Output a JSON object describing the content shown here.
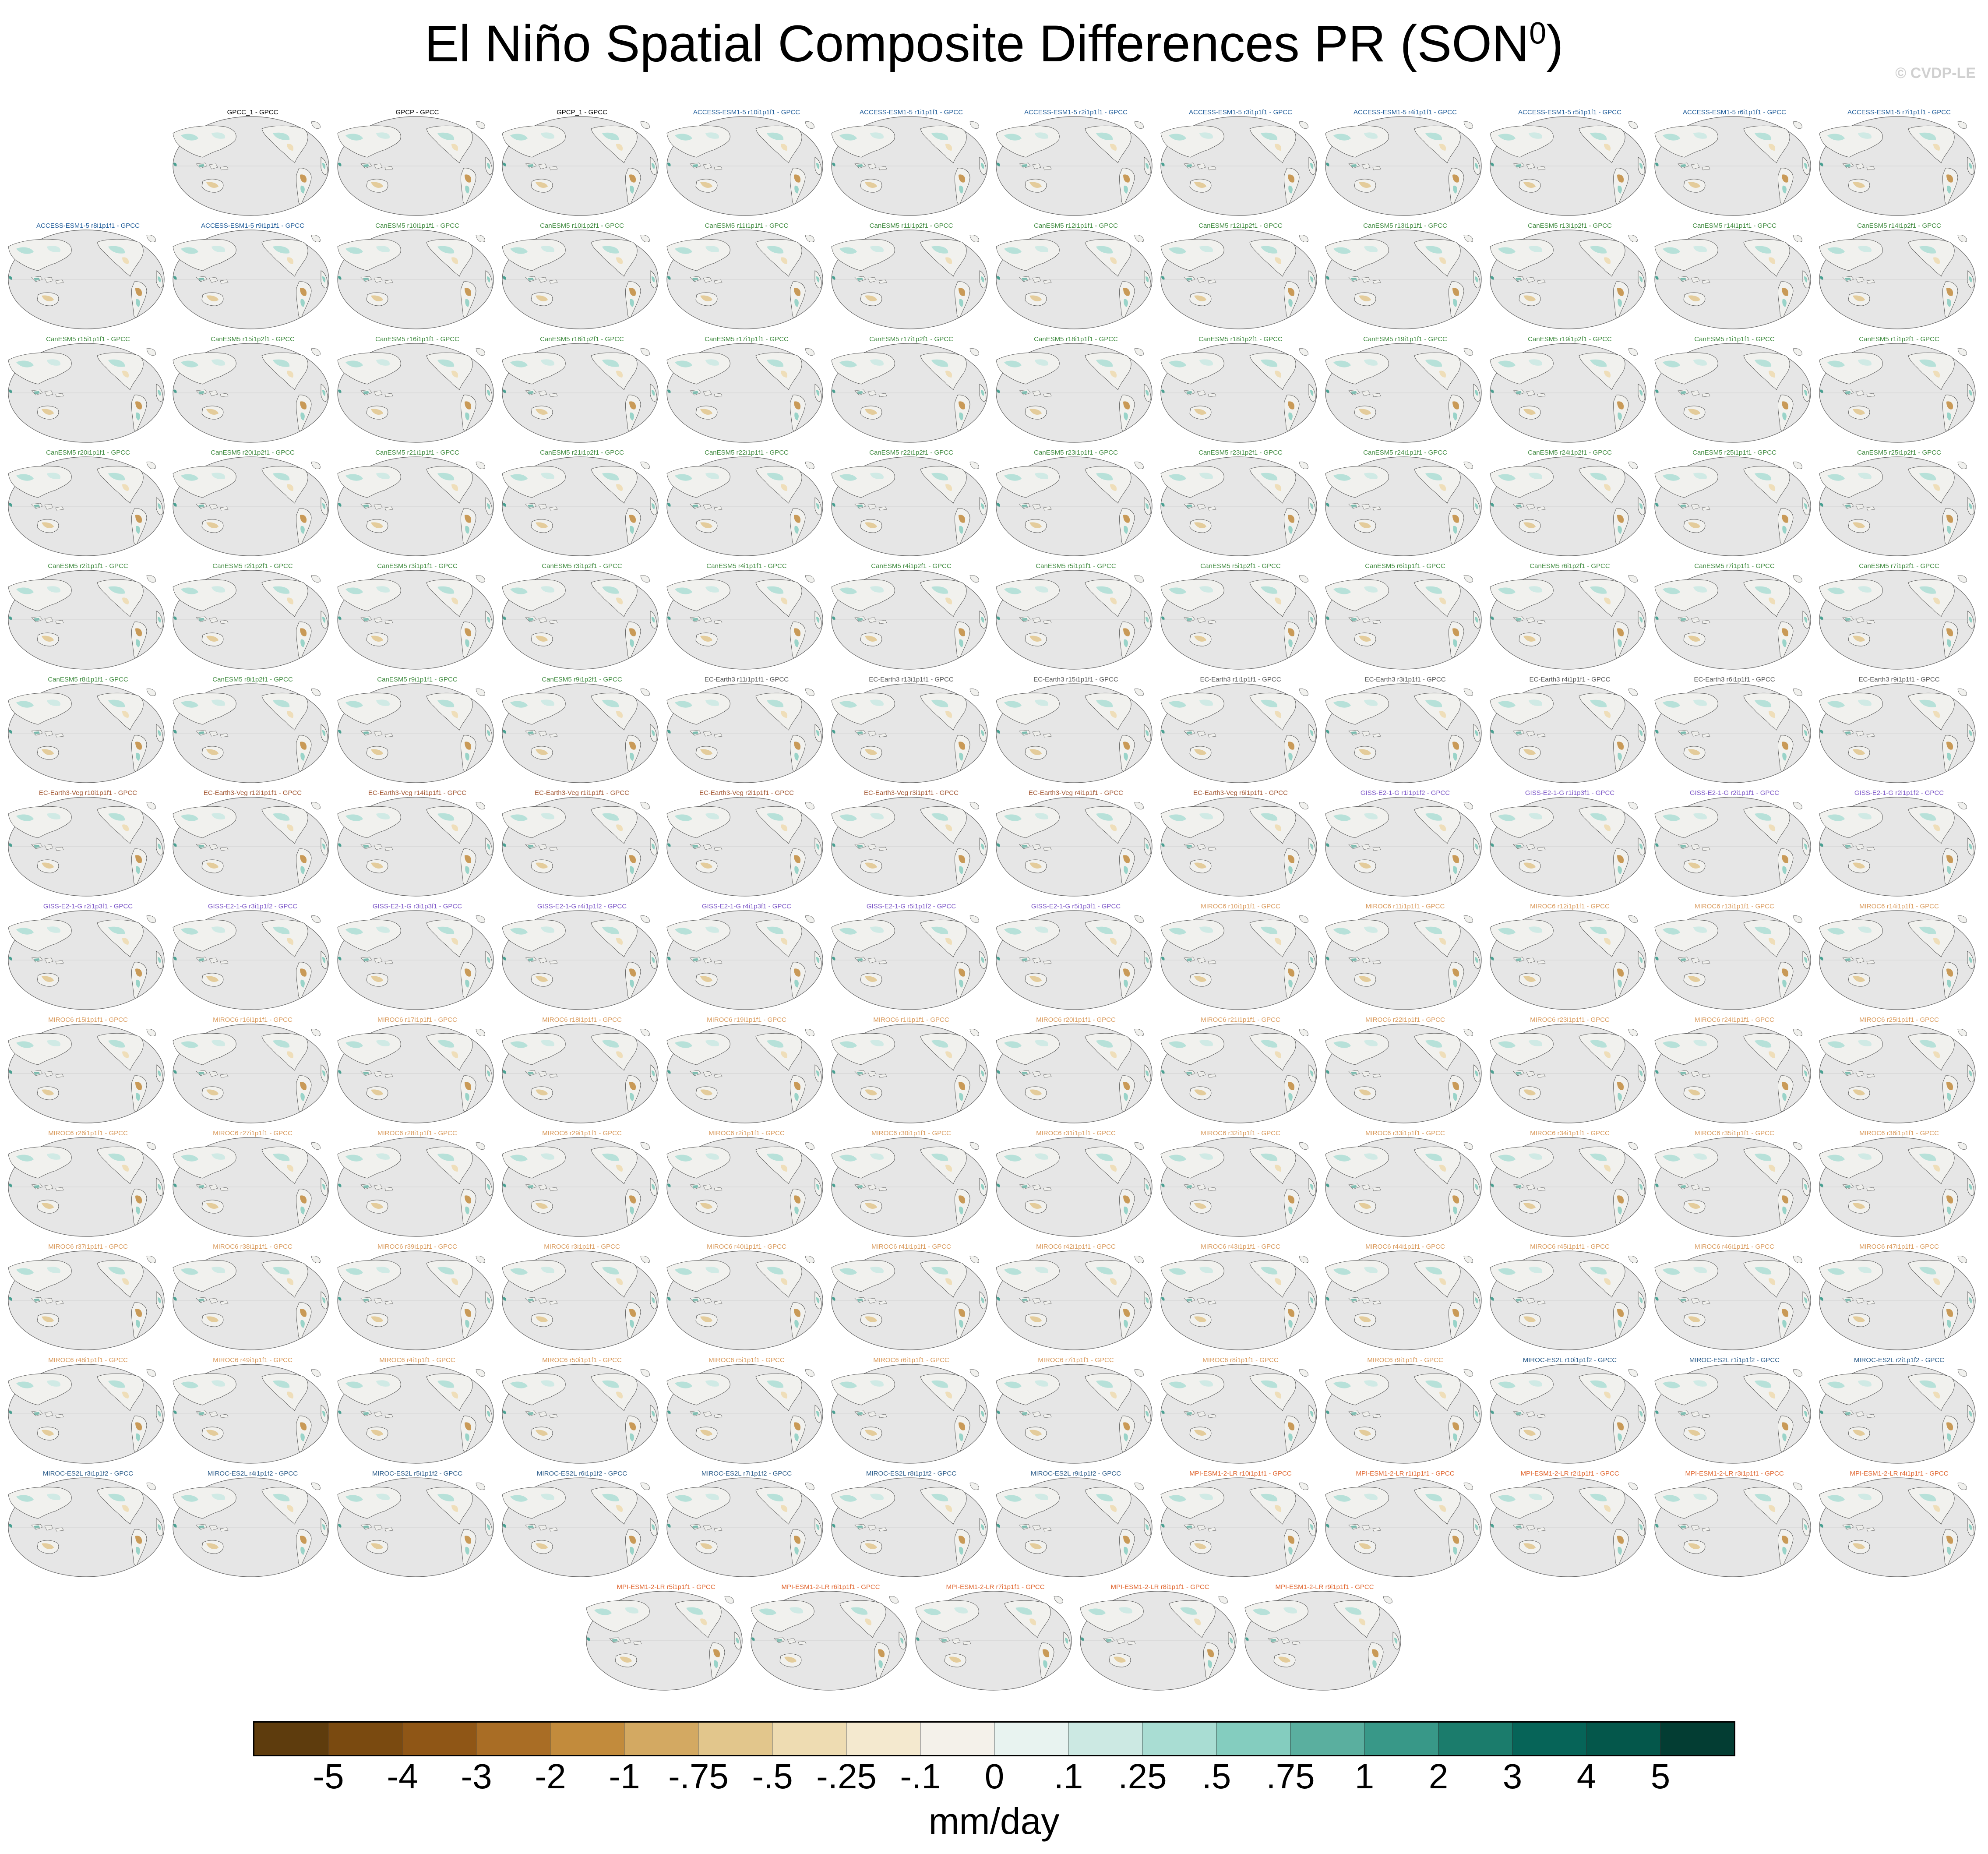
{
  "title": "El Niño Spatial Composite Differences PR (SON",
  "title_sup": "0",
  "title_suffix": ")",
  "watermark": "© CVDP-LE",
  "icons": [
    "world-map-icon"
  ],
  "panels": [
    {
      "label": "GPCC_1 - GPCC",
      "group": "obs"
    },
    {
      "label": "GPCP - GPCC",
      "group": "obs"
    },
    {
      "label": "GPCP_1 - GPCC",
      "group": "obs"
    },
    {
      "label": "ACCESS-ESM1-5 r10i1p1f1 - GPCC",
      "group": "ACCESS"
    },
    {
      "label": "ACCESS-ESM1-5 r1i1p1f1 - GPCC",
      "group": "ACCESS"
    },
    {
      "label": "ACCESS-ESM1-5 r2i1p1f1 - GPCC",
      "group": "ACCESS"
    },
    {
      "label": "ACCESS-ESM1-5 r3i1p1f1 - GPCC",
      "group": "ACCESS"
    },
    {
      "label": "ACCESS-ESM1-5 r4i1p1f1 - GPCC",
      "group": "ACCESS"
    },
    {
      "label": "ACCESS-ESM1-5 r5i1p1f1 - GPCC",
      "group": "ACCESS"
    },
    {
      "label": "ACCESS-ESM1-5 r6i1p1f1 - GPCC",
      "group": "ACCESS"
    },
    {
      "label": "ACCESS-ESM1-5 r7i1p1f1 - GPCC",
      "group": "ACCESS"
    },
    {
      "label": "ACCESS-ESM1-5 r8i1p1f1 - GPCC",
      "group": "ACCESS"
    },
    {
      "label": "ACCESS-ESM1-5 r9i1p1f1 - GPCC",
      "group": "ACCESS"
    },
    {
      "label": "CanESM5 r10i1p1f1 - GPCC",
      "group": "CanESM5"
    },
    {
      "label": "CanESM5 r10i1p2f1 - GPCC",
      "group": "CanESM5"
    },
    {
      "label": "CanESM5 r11i1p1f1 - GPCC",
      "group": "CanESM5"
    },
    {
      "label": "CanESM5 r11i1p2f1 - GPCC",
      "group": "CanESM5"
    },
    {
      "label": "CanESM5 r12i1p1f1 - GPCC",
      "group": "CanESM5"
    },
    {
      "label": "CanESM5 r12i1p2f1 - GPCC",
      "group": "CanESM5"
    },
    {
      "label": "CanESM5 r13i1p1f1 - GPCC",
      "group": "CanESM5"
    },
    {
      "label": "CanESM5 r13i1p2f1 - GPCC",
      "group": "CanESM5"
    },
    {
      "label": "CanESM5 r14i1p1f1 - GPCC",
      "group": "CanESM5"
    },
    {
      "label": "CanESM5 r14i1p2f1 - GPCC",
      "group": "CanESM5"
    },
    {
      "label": "CanESM5 r15i1p1f1 - GPCC",
      "group": "CanESM5"
    },
    {
      "label": "CanESM5 r15i1p2f1 - GPCC",
      "group": "CanESM5"
    },
    {
      "label": "CanESM5 r16i1p1f1 - GPCC",
      "group": "CanESM5"
    },
    {
      "label": "CanESM5 r16i1p2f1 - GPCC",
      "group": "CanESM5"
    },
    {
      "label": "CanESM5 r17i1p1f1 - GPCC",
      "group": "CanESM5"
    },
    {
      "label": "CanESM5 r17i1p2f1 - GPCC",
      "group": "CanESM5"
    },
    {
      "label": "CanESM5 r18i1p1f1 - GPCC",
      "group": "CanESM5"
    },
    {
      "label": "CanESM5 r18i1p2f1 - GPCC",
      "group": "CanESM5"
    },
    {
      "label": "CanESM5 r19i1p1f1 - GPCC",
      "group": "CanESM5"
    },
    {
      "label": "CanESM5 r19i1p2f1 - GPCC",
      "group": "CanESM5"
    },
    {
      "label": "CanESM5 r1i1p1f1 - GPCC",
      "group": "CanESM5"
    },
    {
      "label": "CanESM5 r1i1p2f1 - GPCC",
      "group": "CanESM5"
    },
    {
      "label": "CanESM5 r20i1p1f1 - GPCC",
      "group": "CanESM5"
    },
    {
      "label": "CanESM5 r20i1p2f1 - GPCC",
      "group": "CanESM5"
    },
    {
      "label": "CanESM5 r21i1p1f1 - GPCC",
      "group": "CanESM5"
    },
    {
      "label": "CanESM5 r21i1p2f1 - GPCC",
      "group": "CanESM5"
    },
    {
      "label": "CanESM5 r22i1p1f1 - GPCC",
      "group": "CanESM5"
    },
    {
      "label": "CanESM5 r22i1p2f1 - GPCC",
      "group": "CanESM5"
    },
    {
      "label": "CanESM5 r23i1p1f1 - GPCC",
      "group": "CanESM5"
    },
    {
      "label": "CanESM5 r23i1p2f1 - GPCC",
      "group": "CanESM5"
    },
    {
      "label": "CanESM5 r24i1p1f1 - GPCC",
      "group": "CanESM5"
    },
    {
      "label": "CanESM5 r24i1p2f1 - GPCC",
      "group": "CanESM5"
    },
    {
      "label": "CanESM5 r25i1p1f1 - GPCC",
      "group": "CanESM5"
    },
    {
      "label": "CanESM5 r25i1p2f1 - GPCC",
      "group": "CanESM5"
    },
    {
      "label": "CanESM5 r2i1p1f1 - GPCC",
      "group": "CanESM5"
    },
    {
      "label": "CanESM5 r2i1p2f1 - GPCC",
      "group": "CanESM5"
    },
    {
      "label": "CanESM5 r3i1p1f1 - GPCC",
      "group": "CanESM5"
    },
    {
      "label": "CanESM5 r3i1p2f1 - GPCC",
      "group": "CanESM5"
    },
    {
      "label": "CanESM5 r4i1p1f1 - GPCC",
      "group": "CanESM5"
    },
    {
      "label": "CanESM5 r4i1p2f1 - GPCC",
      "group": "CanESM5"
    },
    {
      "label": "CanESM5 r5i1p1f1 - GPCC",
      "group": "CanESM5"
    },
    {
      "label": "CanESM5 r5i1p2f1 - GPCC",
      "group": "CanESM5"
    },
    {
      "label": "CanESM5 r6i1p1f1 - GPCC",
      "group": "CanESM5"
    },
    {
      "label": "CanESM5 r6i1p2f1 - GPCC",
      "group": "CanESM5"
    },
    {
      "label": "CanESM5 r7i1p1f1 - GPCC",
      "group": "CanESM5"
    },
    {
      "label": "CanESM5 r7i1p2f1 - GPCC",
      "group": "CanESM5"
    },
    {
      "label": "CanESM5 r8i1p1f1 - GPCC",
      "group": "CanESM5"
    },
    {
      "label": "CanESM5 r8i1p2f1 - GPCC",
      "group": "CanESM5"
    },
    {
      "label": "CanESM5 r9i1p1f1 - GPCC",
      "group": "CanESM5"
    },
    {
      "label": "CanESM5 r9i1p2f1 - GPCC",
      "group": "CanESM5"
    },
    {
      "label": "EC-Earth3 r11i1p1f1 - GPCC",
      "group": "EC-Earth3"
    },
    {
      "label": "EC-Earth3 r13i1p1f1 - GPCC",
      "group": "EC-Earth3"
    },
    {
      "label": "EC-Earth3 r15i1p1f1 - GPCC",
      "group": "EC-Earth3"
    },
    {
      "label": "EC-Earth3 r1i1p1f1 - GPCC",
      "group": "EC-Earth3"
    },
    {
      "label": "EC-Earth3 r3i1p1f1 - GPCC",
      "group": "EC-Earth3"
    },
    {
      "label": "EC-Earth3 r4i1p1f1 - GPCC",
      "group": "EC-Earth3"
    },
    {
      "label": "EC-Earth3 r6i1p1f1 - GPCC",
      "group": "EC-Earth3"
    },
    {
      "label": "EC-Earth3 r9i1p1f1 - GPCC",
      "group": "EC-Earth3"
    },
    {
      "label": "EC-Earth3-Veg r10i1p1f1 - GPCC",
      "group": "EC-Earth3-Veg"
    },
    {
      "label": "EC-Earth3-Veg r12i1p1f1 - GPCC",
      "group": "EC-Earth3-Veg"
    },
    {
      "label": "EC-Earth3-Veg r14i1p1f1 - GPCC",
      "group": "EC-Earth3-Veg"
    },
    {
      "label": "EC-Earth3-Veg r1i1p1f1 - GPCC",
      "group": "EC-Earth3-Veg"
    },
    {
      "label": "EC-Earth3-Veg r2i1p1f1 - GPCC",
      "group": "EC-Earth3-Veg"
    },
    {
      "label": "EC-Earth3-Veg r3i1p1f1 - GPCC",
      "group": "EC-Earth3-Veg"
    },
    {
      "label": "EC-Earth3-Veg r4i1p1f1 - GPCC",
      "group": "EC-Earth3-Veg"
    },
    {
      "label": "EC-Earth3-Veg r6i1p1f1 - GPCC",
      "group": "EC-Earth3-Veg"
    },
    {
      "label": "GISS-E2-1-G r1i1p1f2 - GPCC",
      "group": "GISS"
    },
    {
      "label": "GISS-E2-1-G r1i1p3f1 - GPCC",
      "group": "GISS"
    },
    {
      "label": "GISS-E2-1-G r2i1p1f1 - GPCC",
      "group": "GISS"
    },
    {
      "label": "GISS-E2-1-G r2i1p1f2 - GPCC",
      "group": "GISS"
    },
    {
      "label": "GISS-E2-1-G r2i1p3f1 - GPCC",
      "group": "GISS"
    },
    {
      "label": "GISS-E2-1-G r3i1p1f2 - GPCC",
      "group": "GISS"
    },
    {
      "label": "GISS-E2-1-G r3i1p3f1 - GPCC",
      "group": "GISS"
    },
    {
      "label": "GISS-E2-1-G r4i1p1f2 - GPCC",
      "group": "GISS"
    },
    {
      "label": "GISS-E2-1-G r4i1p3f1 - GPCC",
      "group": "GISS"
    },
    {
      "label": "GISS-E2-1-G r5i1p1f2 - GPCC",
      "group": "GISS"
    },
    {
      "label": "GISS-E2-1-G r5i1p3f1 - GPCC",
      "group": "GISS"
    },
    {
      "label": "MIROC6 r10i1p1f1 - GPCC",
      "group": "MIROC6"
    },
    {
      "label": "MIROC6 r11i1p1f1 - GPCC",
      "group": "MIROC6"
    },
    {
      "label": "MIROC6 r12i1p1f1 - GPCC",
      "group": "MIROC6"
    },
    {
      "label": "MIROC6 r13i1p1f1 - GPCC",
      "group": "MIROC6"
    },
    {
      "label": "MIROC6 r14i1p1f1 - GPCC",
      "group": "MIROC6"
    },
    {
      "label": "MIROC6 r15i1p1f1 - GPCC",
      "group": "MIROC6"
    },
    {
      "label": "MIROC6 r16i1p1f1 - GPCC",
      "group": "MIROC6"
    },
    {
      "label": "MIROC6 r17i1p1f1 - GPCC",
      "group": "MIROC6"
    },
    {
      "label": "MIROC6 r18i1p1f1 - GPCC",
      "group": "MIROC6"
    },
    {
      "label": "MIROC6 r19i1p1f1 - GPCC",
      "group": "MIROC6"
    },
    {
      "label": "MIROC6 r1i1p1f1 - GPCC",
      "group": "MIROC6"
    },
    {
      "label": "MIROC6 r20i1p1f1 - GPCC",
      "group": "MIROC6"
    },
    {
      "label": "MIROC6 r21i1p1f1 - GPCC",
      "group": "MIROC6"
    },
    {
      "label": "MIROC6 r22i1p1f1 - GPCC",
      "group": "MIROC6"
    },
    {
      "label": "MIROC6 r23i1p1f1 - GPCC",
      "group": "MIROC6"
    },
    {
      "label": "MIROC6 r24i1p1f1 - GPCC",
      "group": "MIROC6"
    },
    {
      "label": "MIROC6 r25i1p1f1 - GPCC",
      "group": "MIROC6"
    },
    {
      "label": "MIROC6 r26i1p1f1 - GPCC",
      "group": "MIROC6"
    },
    {
      "label": "MIROC6 r27i1p1f1 - GPCC",
      "group": "MIROC6"
    },
    {
      "label": "MIROC6 r28i1p1f1 - GPCC",
      "group": "MIROC6"
    },
    {
      "label": "MIROC6 r29i1p1f1 - GPCC",
      "group": "MIROC6"
    },
    {
      "label": "MIROC6 r2i1p1f1 - GPCC",
      "group": "MIROC6"
    },
    {
      "label": "MIROC6 r30i1p1f1 - GPCC",
      "group": "MIROC6"
    },
    {
      "label": "MIROC6 r31i1p1f1 - GPCC",
      "group": "MIROC6"
    },
    {
      "label": "MIROC6 r32i1p1f1 - GPCC",
      "group": "MIROC6"
    },
    {
      "label": "MIROC6 r33i1p1f1 - GPCC",
      "group": "MIROC6"
    },
    {
      "label": "MIROC6 r34i1p1f1 - GPCC",
      "group": "MIROC6"
    },
    {
      "label": "MIROC6 r35i1p1f1 - GPCC",
      "group": "MIROC6"
    },
    {
      "label": "MIROC6 r36i1p1f1 - GPCC",
      "group": "MIROC6"
    },
    {
      "label": "MIROC6 r37i1p1f1 - GPCC",
      "group": "MIROC6"
    },
    {
      "label": "MIROC6 r38i1p1f1 - GPCC",
      "group": "MIROC6"
    },
    {
      "label": "MIROC6 r39i1p1f1 - GPCC",
      "group": "MIROC6"
    },
    {
      "label": "MIROC6 r3i1p1f1 - GPCC",
      "group": "MIROC6"
    },
    {
      "label": "MIROC6 r40i1p1f1 - GPCC",
      "group": "MIROC6"
    },
    {
      "label": "MIROC6 r41i1p1f1 - GPCC",
      "group": "MIROC6"
    },
    {
      "label": "MIROC6 r42i1p1f1 - GPCC",
      "group": "MIROC6"
    },
    {
      "label": "MIROC6 r43i1p1f1 - GPCC",
      "group": "MIROC6"
    },
    {
      "label": "MIROC6 r44i1p1f1 - GPCC",
      "group": "MIROC6"
    },
    {
      "label": "MIROC6 r45i1p1f1 - GPCC",
      "group": "MIROC6"
    },
    {
      "label": "MIROC6 r46i1p1f1 - GPCC",
      "group": "MIROC6"
    },
    {
      "label": "MIROC6 r47i1p1f1 - GPCC",
      "group": "MIROC6"
    },
    {
      "label": "MIROC6 r48i1p1f1 - GPCC",
      "group": "MIROC6"
    },
    {
      "label": "MIROC6 r49i1p1f1 - GPCC",
      "group": "MIROC6"
    },
    {
      "label": "MIROC6 r4i1p1f1 - GPCC",
      "group": "MIROC6"
    },
    {
      "label": "MIROC6 r50i1p1f1 - GPCC",
      "group": "MIROC6"
    },
    {
      "label": "MIROC6 r5i1p1f1 - GPCC",
      "group": "MIROC6"
    },
    {
      "label": "MIROC6 r6i1p1f1 - GPCC",
      "group": "MIROC6"
    },
    {
      "label": "MIROC6 r7i1p1f1 - GPCC",
      "group": "MIROC6"
    },
    {
      "label": "MIROC6 r8i1p1f1 - GPCC",
      "group": "MIROC6"
    },
    {
      "label": "MIROC6 r9i1p1f1 - GPCC",
      "group": "MIROC6"
    },
    {
      "label": "MIROC-ES2L r10i1p1f2 - GPCC",
      "group": "MIROC-ES2L"
    },
    {
      "label": "MIROC-ES2L r1i1p1f2 - GPCC",
      "group": "MIROC-ES2L"
    },
    {
      "label": "MIROC-ES2L r2i1p1f2 - GPCC",
      "group": "MIROC-ES2L"
    },
    {
      "label": "MIROC-ES2L r3i1p1f2 - GPCC",
      "group": "MIROC-ES2L"
    },
    {
      "label": "MIROC-ES2L r4i1p1f2 - GPCC",
      "group": "MIROC-ES2L"
    },
    {
      "label": "MIROC-ES2L r5i1p1f2 - GPCC",
      "group": "MIROC-ES2L"
    },
    {
      "label": "MIROC-ES2L r6i1p1f2 - GPCC",
      "group": "MIROC-ES2L"
    },
    {
      "label": "MIROC-ES2L r7i1p1f2 - GPCC",
      "group": "MIROC-ES2L"
    },
    {
      "label": "MIROC-ES2L r8i1p1f2 - GPCC",
      "group": "MIROC-ES2L"
    },
    {
      "label": "MIROC-ES2L r9i1p1f2 - GPCC",
      "group": "MIROC-ES2L"
    },
    {
      "label": "MPI-ESM1-2-LR r10i1p1f1 - GPCC",
      "group": "MPI"
    },
    {
      "label": "MPI-ESM1-2-LR r1i1p1f1 - GPCC",
      "group": "MPI"
    },
    {
      "label": "MPI-ESM1-2-LR r2i1p1f1 - GPCC",
      "group": "MPI"
    },
    {
      "label": "MPI-ESM1-2-LR r3i1p1f1 - GPCC",
      "group": "MPI"
    },
    {
      "label": "MPI-ESM1-2-LR r4i1p1f1 - GPCC",
      "group": "MPI"
    },
    {
      "label": "MPI-ESM1-2-LR r5i1p1f1 - GPCC",
      "group": "MPI"
    },
    {
      "label": "MPI-ESM1-2-LR r6i1p1f1 - GPCC",
      "group": "MPI"
    },
    {
      "label": "MPI-ESM1-2-LR r7i1p1f1 - GPCC",
      "group": "MPI"
    },
    {
      "label": "MPI-ESM1-2-LR r8i1p1f1 - GPCC",
      "group": "MPI"
    },
    {
      "label": "MPI-ESM1-2-LR r9i1p1f1 - GPCC",
      "group": "MPI"
    }
  ],
  "group_colors": {
    "obs": "#000000",
    "ACCESS": "#1f5c99",
    "CanESM5": "#3f8a3f",
    "EC-Earth3": "#555555",
    "EC-Earth3-Veg": "#a0522d",
    "GISS": "#7b55c7",
    "MIROC6": "#d99a5c",
    "MIROC-ES2L": "#2b5c8a",
    "MPI": "#e0642d"
  },
  "colorbar": {
    "colors": [
      "#5e3c0d",
      "#7a4a10",
      "#8f5616",
      "#a96d25",
      "#c28b3c",
      "#d3a962",
      "#e2c68c",
      "#eedcb2",
      "#f4e9cf",
      "#f4f1ea",
      "#e8f3f0",
      "#cce9e3",
      "#a9ddd3",
      "#84cdbf",
      "#5aaf9f",
      "#389888",
      "#1b7c6c",
      "#066458",
      "#04574b",
      "#033d33"
    ],
    "ticks": [
      "-5",
      "-4",
      "-3",
      "-2",
      "-1",
      "-.75",
      "-.5",
      "-.25",
      "-.1",
      "0",
      ".1",
      ".25",
      ".5",
      ".75",
      "1",
      "2",
      "3",
      "4",
      "5"
    ],
    "units": "mm/day"
  }
}
